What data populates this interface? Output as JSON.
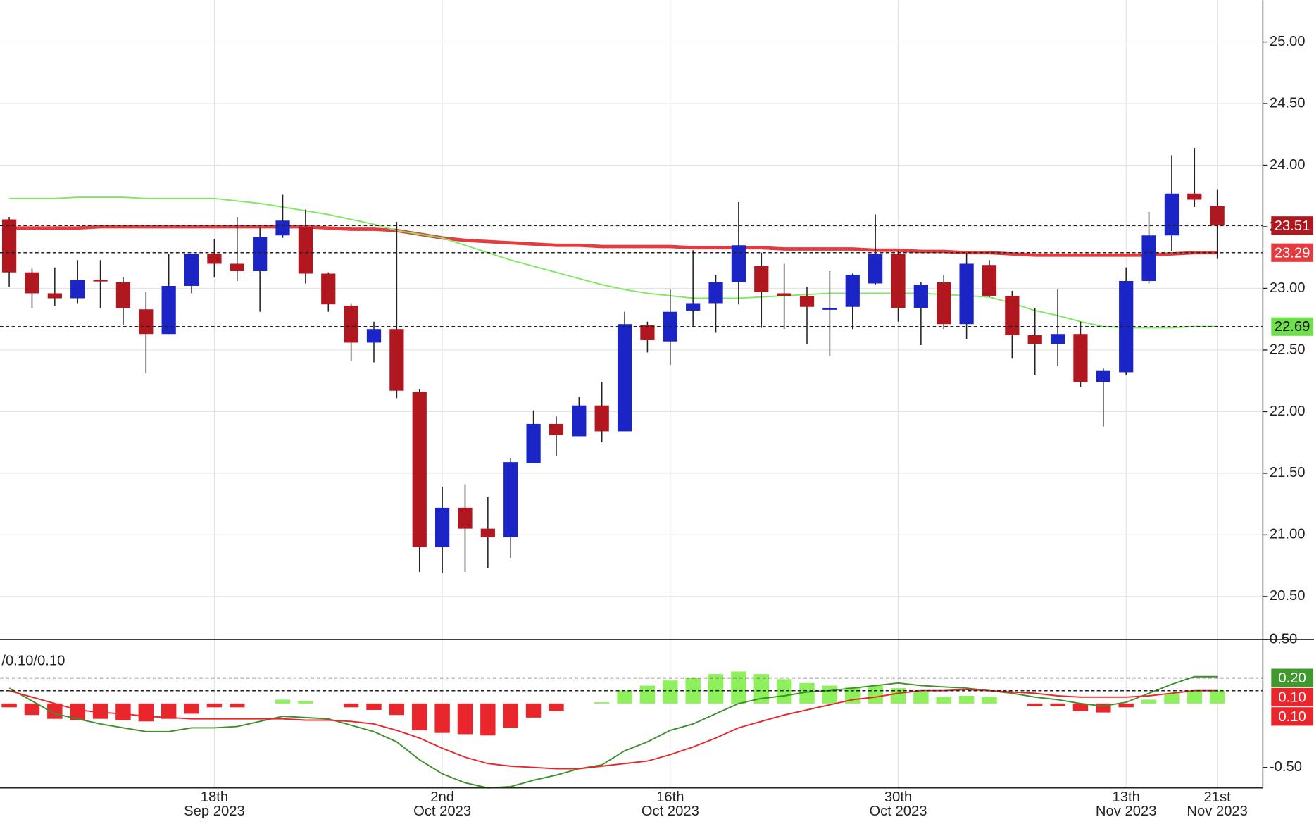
{
  "chart_data": [
    {
      "type": "candlestick",
      "categories": [
        null,
        null,
        null,
        null,
        null,
        null,
        null,
        null,
        null,
        "18th Sep 2023",
        null,
        null,
        null,
        null,
        null,
        null,
        null,
        null,
        null,
        "2nd Oct 2023",
        null,
        null,
        null,
        null,
        null,
        null,
        null,
        null,
        null,
        "16th Oct 2023",
        null,
        null,
        null,
        null,
        null,
        null,
        null,
        null,
        null,
        "30th Oct 2023",
        null,
        null,
        null,
        null,
        null,
        null,
        null,
        null,
        null,
        "13th Nov 2023",
        null,
        null,
        null,
        "21st Nov 2023"
      ],
      "open": [
        23.56,
        23.13,
        22.96,
        22.92,
        23.07,
        23.05,
        22.83,
        22.63,
        23.02,
        23.28,
        23.2,
        23.14,
        23.43,
        23.5,
        23.12,
        22.86,
        22.56,
        22.67,
        22.16,
        20.9,
        21.22,
        21.05,
        20.98,
        21.58,
        21.9,
        21.8,
        22.05,
        21.84,
        22.7,
        22.57,
        22.82,
        22.88,
        23.05,
        23.18,
        22.96,
        22.94,
        22.83,
        22.85,
        23.04,
        23.28,
        22.84,
        23.05,
        22.71,
        23.19,
        22.94,
        22.62,
        22.55,
        22.63,
        22.24,
        22.32,
        23.06,
        23.43,
        23.77,
        23.67
      ],
      "high": [
        23.58,
        23.16,
        23.17,
        23.23,
        23.23,
        23.09,
        22.97,
        23.28,
        23.28,
        23.4,
        23.58,
        23.49,
        23.76,
        23.64,
        23.13,
        22.88,
        22.73,
        23.54,
        22.18,
        21.39,
        21.41,
        21.31,
        21.62,
        22.01,
        21.96,
        22.12,
        22.24,
        22.81,
        22.73,
        22.99,
        23.31,
        23.11,
        23.7,
        23.29,
        23.2,
        23.01,
        23.14,
        23.12,
        23.6,
        23.3,
        23.05,
        23.11,
        23.29,
        23.23,
        22.98,
        22.84,
        22.99,
        22.73,
        22.35,
        23.17,
        23.62,
        24.08,
        24.14,
        23.8
      ],
      "low": [
        23.01,
        22.84,
        22.86,
        22.88,
        22.84,
        22.7,
        22.31,
        22.63,
        22.96,
        23.09,
        23.06,
        22.81,
        23.41,
        23.04,
        22.81,
        22.41,
        22.4,
        22.11,
        20.7,
        20.69,
        20.7,
        20.73,
        20.81,
        21.58,
        21.64,
        21.8,
        21.75,
        21.84,
        22.48,
        22.38,
        22.69,
        22.64,
        22.87,
        22.68,
        22.67,
        22.55,
        22.45,
        22.67,
        23.03,
        22.73,
        22.54,
        22.67,
        22.59,
        22.93,
        22.43,
        22.3,
        22.37,
        22.2,
        21.88,
        22.3,
        23.04,
        23.3,
        23.66,
        23.24
      ],
      "close": [
        23.13,
        22.96,
        22.92,
        23.07,
        23.06,
        22.84,
        22.63,
        23.02,
        23.28,
        23.2,
        23.14,
        23.42,
        23.55,
        23.12,
        22.87,
        22.56,
        22.67,
        22.17,
        20.9,
        21.22,
        21.05,
        20.98,
        21.59,
        21.9,
        21.81,
        22.05,
        21.84,
        22.71,
        22.58,
        22.81,
        22.88,
        23.05,
        23.35,
        22.97,
        22.94,
        22.85,
        22.84,
        23.11,
        23.28,
        22.84,
        23.03,
        22.71,
        23.2,
        22.94,
        22.62,
        22.55,
        22.63,
        22.24,
        22.33,
        23.06,
        23.43,
        23.77,
        23.72,
        23.51
      ],
      "up_color": "#1b25c6",
      "down_color": "#b0171f",
      "series": [
        {
          "color": "#e23c40",
          "values": [
            23.49,
            23.49,
            23.49,
            23.49,
            23.5,
            23.5,
            23.5,
            23.5,
            23.5,
            23.5,
            23.5,
            23.5,
            23.5,
            23.5,
            23.49,
            23.48,
            23.48,
            23.47,
            23.44,
            23.41,
            23.39,
            23.38,
            23.37,
            23.36,
            23.35,
            23.35,
            23.34,
            23.34,
            23.34,
            23.34,
            23.33,
            23.33,
            23.33,
            23.33,
            23.32,
            23.32,
            23.32,
            23.32,
            23.31,
            23.31,
            23.3,
            23.3,
            23.29,
            23.29,
            23.28,
            23.27,
            23.27,
            23.27,
            23.27,
            23.27,
            23.27,
            23.28,
            23.29,
            23.29
          ]
        },
        {
          "color": "#7ee860",
          "values": [
            23.73,
            23.73,
            23.73,
            23.74,
            23.74,
            23.74,
            23.73,
            23.73,
            23.73,
            23.73,
            23.71,
            23.69,
            23.66,
            23.63,
            23.6,
            23.56,
            23.52,
            23.47,
            23.44,
            23.41,
            23.35,
            23.29,
            23.23,
            23.18,
            23.13,
            23.08,
            23.03,
            22.99,
            22.96,
            22.94,
            22.92,
            22.92,
            22.92,
            22.93,
            22.94,
            22.95,
            22.96,
            22.96,
            22.96,
            22.96,
            22.96,
            22.95,
            22.94,
            22.93,
            22.88,
            22.82,
            22.78,
            22.73,
            22.69,
            22.68,
            22.68,
            22.68,
            22.69,
            22.69
          ]
        }
      ],
      "ylim": [
        20.15,
        25.34
      ],
      "yticks": [
        {
          "value": 20.5,
          "label": "20.50"
        },
        {
          "value": 21,
          "label": "21.00"
        },
        {
          "value": 21.5,
          "label": "21.50"
        },
        {
          "value": 22,
          "label": "22.00"
        },
        {
          "value": 22.5,
          "label": "22.50"
        },
        {
          "value": 23,
          "label": "23.00"
        },
        {
          "value": 23.5,
          "label": "23.50"
        },
        {
          "value": 24,
          "label": "24.00"
        },
        {
          "value": 24.5,
          "label": "24.50"
        },
        {
          "value": 25,
          "label": "25.00"
        }
      ],
      "grid": true,
      "tags": [
        {
          "value": 23.51,
          "color": "#b0171f"
        },
        {
          "value": 23.29,
          "color": "#e23c40"
        },
        {
          "value": 22.69,
          "color": "#6ee04a"
        }
      ]
    },
    {
      "type": "macd",
      "label": "/0.10/0.10",
      "histogram": [
        -0.03,
        -0.09,
        -0.12,
        -0.13,
        -0.12,
        -0.13,
        -0.14,
        -0.12,
        -0.08,
        -0.03,
        -0.03,
        0,
        0.03,
        0.02,
        0,
        -0.03,
        -0.05,
        -0.09,
        -0.21,
        -0.23,
        -0.24,
        -0.25,
        -0.19,
        -0.11,
        -0.06,
        0,
        0.01,
        0.1,
        0.14,
        0.18,
        0.2,
        0.23,
        0.25,
        0.23,
        0.19,
        0.16,
        0.14,
        0.13,
        0.14,
        0.12,
        0.09,
        0.05,
        0.06,
        0.05,
        0,
        -0.02,
        -0.02,
        -0.06,
        -0.07,
        -0.03,
        0.03,
        0.08,
        0.1,
        0.1
      ],
      "positive_color": "#8ef05a",
      "negative_color": "#e8262b",
      "series": [
        {
          "color": "#3f8f2e",
          "values": [
            0.12,
            0.02,
            -0.08,
            -0.12,
            -0.16,
            -0.19,
            -0.22,
            -0.22,
            -0.19,
            -0.19,
            -0.18,
            -0.14,
            -0.1,
            -0.11,
            -0.12,
            -0.17,
            -0.22,
            -0.3,
            -0.44,
            -0.55,
            -0.62,
            -0.66,
            -0.65,
            -0.6,
            -0.56,
            -0.51,
            -0.48,
            -0.37,
            -0.3,
            -0.21,
            -0.16,
            -0.08,
            0.0,
            0.04,
            0.06,
            0.09,
            0.1,
            0.12,
            0.14,
            0.16,
            0.14,
            0.13,
            0.12,
            0.1,
            0.08,
            0.05,
            0.03,
            0.0,
            -0.02,
            0.01,
            0.08,
            0.15,
            0.21,
            0.21
          ]
        },
        {
          "color": "#e8262b",
          "values": [
            0.1,
            0.05,
            0.0,
            -0.05,
            -0.07,
            -0.08,
            -0.1,
            -0.11,
            -0.12,
            -0.12,
            -0.12,
            -0.12,
            -0.12,
            -0.13,
            -0.13,
            -0.14,
            -0.16,
            -0.21,
            -0.27,
            -0.35,
            -0.42,
            -0.47,
            -0.49,
            -0.5,
            -0.51,
            -0.51,
            -0.49,
            -0.47,
            -0.45,
            -0.4,
            -0.34,
            -0.27,
            -0.19,
            -0.14,
            -0.09,
            -0.05,
            -0.01,
            0.03,
            0.05,
            0.08,
            0.1,
            0.1,
            0.11,
            0.1,
            0.09,
            0.08,
            0.06,
            0.05,
            0.05,
            0.05,
            0.06,
            0.08,
            0.1,
            0.1
          ]
        }
      ],
      "ylim": [
        -0.66,
        0.5
      ],
      "yticks": [
        {
          "value": -0.5,
          "label": "-0.50"
        },
        {
          "value": 0.5,
          "label": "0.50"
        }
      ],
      "tags": [
        {
          "value": 0.2,
          "label": "0.20",
          "color": "#3f9a2e"
        },
        {
          "value": 0.1,
          "label": "0.10",
          "color": "#e8262b"
        },
        {
          "value": 0.1,
          "label": "0.10",
          "color": "#e8262b"
        }
      ]
    }
  ]
}
